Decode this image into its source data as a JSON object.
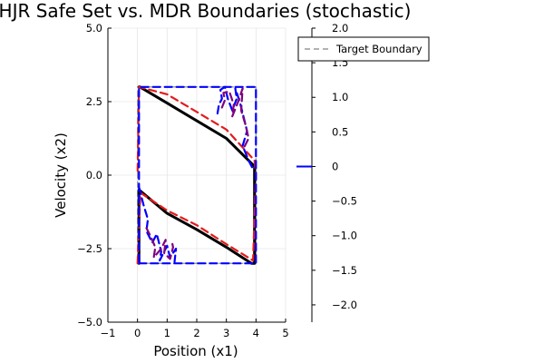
{
  "chart_data": {
    "type": "line",
    "title": "HJR Safe Set vs. MDR Boundaries (stochastic)",
    "xlabel": "Position (x1)",
    "ylabel": "Velocity (x2)",
    "xlim": [
      -1,
      5
    ],
    "ylim": [
      -5,
      5
    ],
    "x_ticks": [
      "−1",
      "0",
      "1",
      "2",
      "3",
      "4",
      "5"
    ],
    "y_ticks": [
      "−5.0",
      "−2.5",
      "0.0",
      "2.5",
      "5.0"
    ],
    "colorbar": {
      "range": [
        -2.25,
        2.0
      ],
      "ticks": [
        "2.0",
        "1.5",
        "1.0",
        "0.5",
        "0",
        "−0.5",
        "−1.0",
        "−1.5",
        "−2.0"
      ],
      "marker_value": 0
    },
    "grid": true,
    "legend_position": "top-right",
    "legend": [
      {
        "label": "Target Boundary",
        "color": "#999999",
        "style": "dashed"
      }
    ],
    "series": [
      {
        "name": "Target Boundary",
        "color": "#999999",
        "style": "dashed",
        "x": [
          0,
          4,
          4,
          0,
          0
        ],
        "y": [
          -3,
          -3,
          3,
          3,
          -3
        ]
      },
      {
        "color": "#000000",
        "style": "solid",
        "x": [
          0.05,
          0.05,
          1.0,
          2.0,
          3.0,
          3.85,
          3.95,
          3.95,
          3.0,
          2.0,
          1.0,
          0.08,
          0.05
        ],
        "y": [
          -3.0,
          -0.5,
          -1.3,
          -1.85,
          -2.45,
          -3.0,
          -3.0,
          0.3,
          1.25,
          1.85,
          2.45,
          3.0,
          3.0
        ]
      },
      {
        "color": "#e41a1c",
        "style": "dashed",
        "x": [
          0.0,
          0.1,
          1.0,
          2.0,
          3.0,
          3.9,
          4.0,
          3.95,
          3.0,
          2.0,
          1.0,
          0.05,
          0.0
        ],
        "y": [
          -3.0,
          -0.6,
          -1.2,
          -1.7,
          -2.35,
          -2.9,
          0.0,
          0.5,
          1.55,
          2.15,
          2.75,
          3.0,
          0.0
        ]
      },
      {
        "color": "#0000ff",
        "style": "dashed",
        "x": [
          0.05,
          4.0,
          4.0,
          0.05,
          0.05
        ],
        "y": [
          -3.0,
          -3.0,
          3.0,
          3.0,
          -3.0
        ]
      },
      {
        "color": "#0000ff",
        "style": "dashed",
        "x": [
          2.7,
          2.75,
          2.85,
          2.8,
          2.95,
          3.05,
          3.2,
          3.35,
          3.3,
          3.45,
          3.6,
          3.7,
          3.55,
          3.75,
          3.9
        ],
        "y": [
          2.1,
          2.4,
          2.6,
          2.9,
          3.0,
          2.6,
          2.2,
          2.6,
          2.95,
          2.5,
          1.9,
          1.5,
          1.0,
          0.5,
          0.2
        ]
      },
      {
        "color": "#0000ff",
        "style": "dashed",
        "x": [
          0.05,
          0.2,
          0.35,
          0.3,
          0.5,
          0.65,
          0.8,
          0.75,
          1.0,
          1.1,
          1.3,
          1.25
        ],
        "y": [
          -0.4,
          -1.0,
          -1.5,
          -1.9,
          -2.3,
          -2.0,
          -2.6,
          -2.9,
          -2.4,
          -2.8,
          -2.5,
          -2.95
        ]
      },
      {
        "color": "#800080",
        "style": "dashed",
        "x": [
          2.85,
          2.95,
          2.9,
          3.1,
          3.25,
          3.2,
          3.4,
          3.55,
          3.5,
          3.65,
          3.75,
          3.6
        ],
        "y": [
          2.3,
          2.55,
          2.8,
          2.85,
          2.4,
          2.0,
          2.5,
          2.95,
          2.2,
          1.7,
          1.25,
          0.95
        ]
      },
      {
        "color": "#800080",
        "style": "dashed",
        "x": [
          0.3,
          0.45,
          0.6,
          0.55,
          0.8,
          0.95,
          0.9,
          1.1,
          1.2,
          1.15
        ],
        "y": [
          -1.8,
          -2.1,
          -2.45,
          -2.8,
          -2.5,
          -2.2,
          -2.65,
          -2.85,
          -2.45,
          -2.2
        ]
      }
    ]
  }
}
